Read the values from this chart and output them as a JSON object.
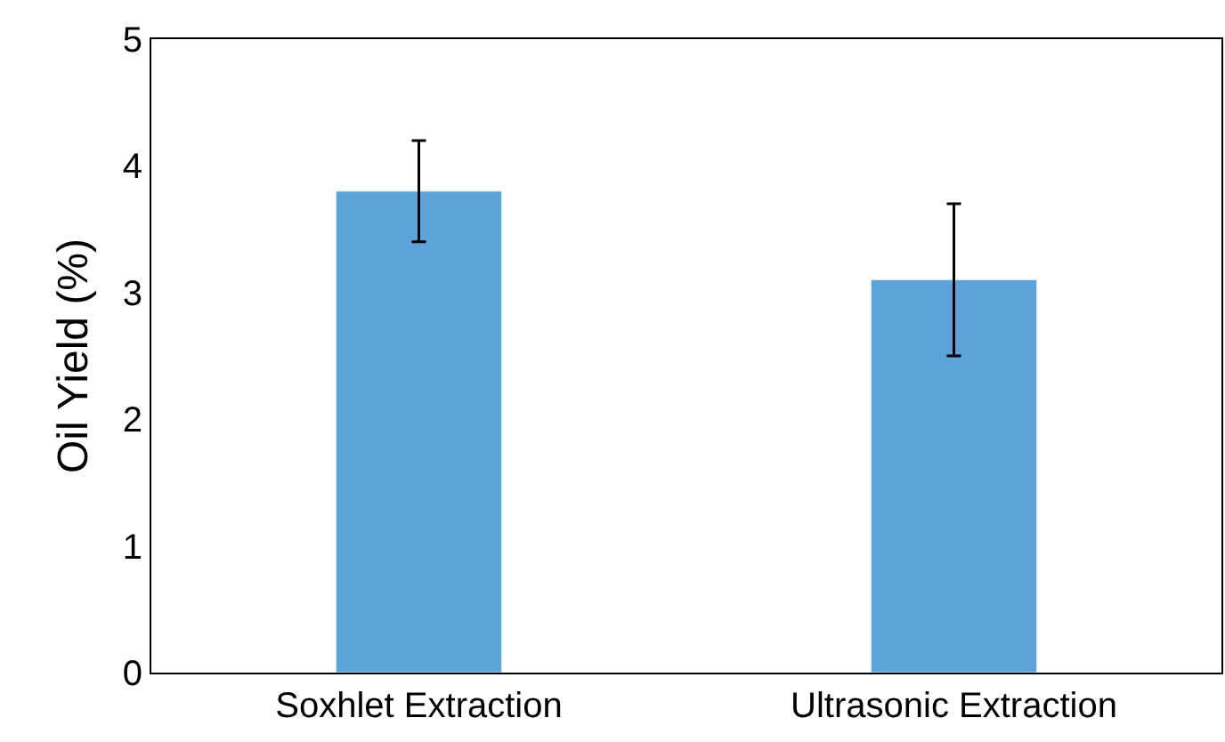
{
  "chart_data": {
    "type": "bar",
    "ylabel": "Oil Yield (%)",
    "categories": [
      "Soxhlet Extraction",
      "Ultrasonic Extraction"
    ],
    "values": [
      3.8,
      3.1
    ],
    "errors": [
      0.4,
      0.6
    ],
    "color": "#5ba3d9",
    "ylim": [
      0,
      5
    ],
    "yticks": [
      0,
      1,
      2,
      3,
      4,
      5
    ]
  }
}
